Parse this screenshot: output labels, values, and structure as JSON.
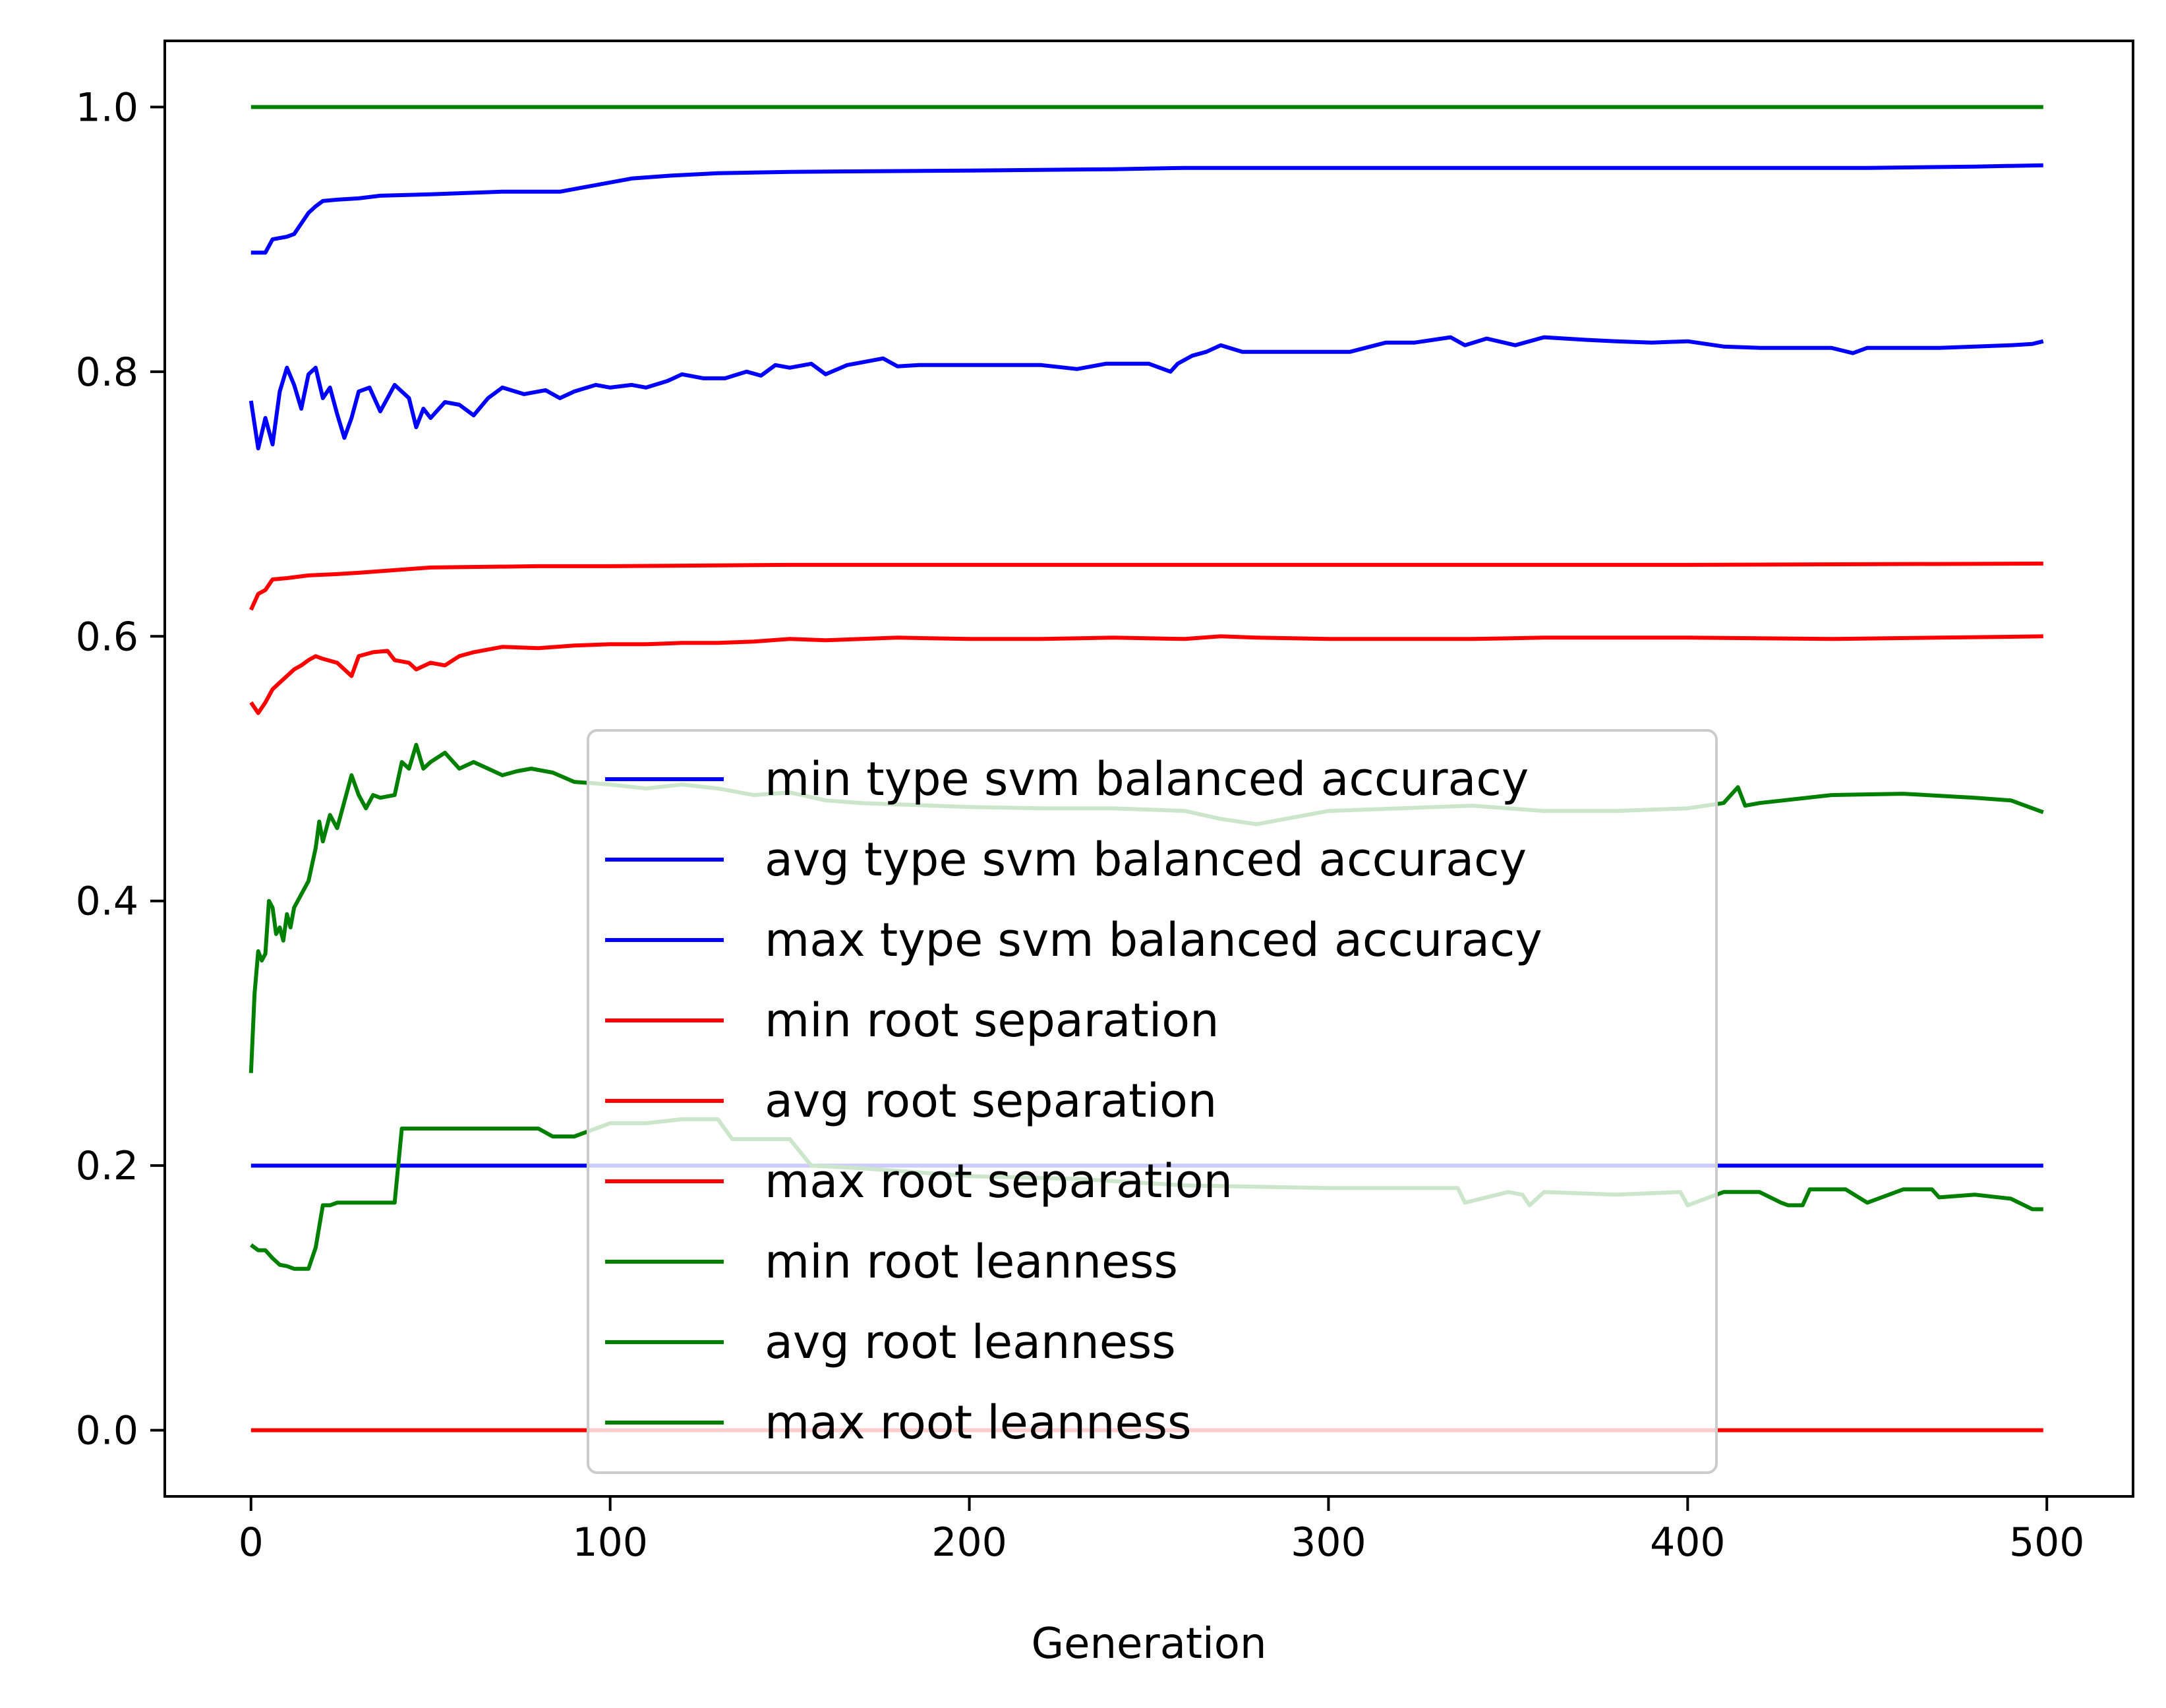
{
  "chart_data": {
    "type": "line",
    "title": "",
    "xlabel": "Generation",
    "ylabel": "",
    "xlim": [
      -24,
      524
    ],
    "ylim": [
      -0.05,
      1.05
    ],
    "xticks": [
      "0",
      "100",
      "200",
      "300",
      "400",
      "500"
    ],
    "yticks": [
      "0.0",
      "0.2",
      "0.4",
      "0.6",
      "0.8",
      "1.0"
    ],
    "grid": false,
    "legend_position": "center",
    "series": [
      {
        "name": "min type svm balanced accuracy",
        "color": "#0000ff",
        "x": [
          0,
          499
        ],
        "y": [
          0.2,
          0.2
        ]
      },
      {
        "name": "avg type svm balanced accuracy",
        "color": "#0000ff",
        "x": [
          0,
          2,
          4,
          6,
          8,
          10,
          12,
          14,
          16,
          18,
          20,
          22,
          24,
          26,
          28,
          30,
          33,
          36,
          40,
          44,
          46,
          48,
          50,
          54,
          58,
          62,
          66,
          70,
          76,
          82,
          86,
          90,
          96,
          100,
          106,
          110,
          116,
          120,
          126,
          132,
          138,
          142,
          146,
          150,
          156,
          160,
          166,
          170,
          176,
          180,
          186,
          200,
          220,
          230,
          238,
          244,
          250,
          256,
          258,
          262,
          266,
          270,
          276,
          290,
          300,
          306,
          316,
          324,
          334,
          338,
          344,
          352,
          360,
          366,
          372,
          380,
          390,
          400,
          410,
          420,
          430,
          440,
          446,
          450,
          460,
          470,
          480,
          490,
          496,
          499
        ],
        "y": [
          0.778,
          0.742,
          0.765,
          0.745,
          0.785,
          0.803,
          0.79,
          0.772,
          0.798,
          0.803,
          0.78,
          0.788,
          0.768,
          0.75,
          0.765,
          0.785,
          0.788,
          0.77,
          0.79,
          0.78,
          0.758,
          0.772,
          0.765,
          0.777,
          0.775,
          0.767,
          0.78,
          0.788,
          0.783,
          0.786,
          0.78,
          0.785,
          0.79,
          0.788,
          0.79,
          0.788,
          0.793,
          0.798,
          0.795,
          0.795,
          0.8,
          0.797,
          0.805,
          0.803,
          0.806,
          0.798,
          0.805,
          0.807,
          0.81,
          0.804,
          0.805,
          0.805,
          0.805,
          0.802,
          0.806,
          0.806,
          0.806,
          0.8,
          0.806,
          0.812,
          0.815,
          0.82,
          0.815,
          0.815,
          0.815,
          0.815,
          0.822,
          0.822,
          0.826,
          0.82,
          0.825,
          0.82,
          0.826,
          0.825,
          0.824,
          0.823,
          0.822,
          0.823,
          0.819,
          0.818,
          0.818,
          0.818,
          0.814,
          0.818,
          0.818,
          0.818,
          0.819,
          0.82,
          0.821,
          0.823
        ]
      },
      {
        "name": "max type svm balanced accuracy",
        "color": "#0000ff",
        "x": [
          0,
          4,
          6,
          10,
          12,
          14,
          16,
          18,
          20,
          24,
          30,
          36,
          50,
          60,
          70,
          86,
          94,
          100,
          106,
          116,
          130,
          150,
          200,
          240,
          260,
          300,
          350,
          400,
          450,
          480,
          499
        ],
        "y": [
          0.89,
          0.89,
          0.9,
          0.902,
          0.904,
          0.912,
          0.92,
          0.925,
          0.929,
          0.93,
          0.931,
          0.933,
          0.934,
          0.935,
          0.936,
          0.936,
          0.94,
          0.943,
          0.946,
          0.948,
          0.95,
          0.951,
          0.952,
          0.953,
          0.954,
          0.954,
          0.954,
          0.954,
          0.954,
          0.955,
          0.956
        ]
      },
      {
        "name": "min root separation",
        "color": "#ff0000",
        "x": [
          0,
          499
        ],
        "y": [
          0.0,
          0.0
        ]
      },
      {
        "name": "avg root separation",
        "color": "#ff0000",
        "x": [
          0,
          2,
          4,
          6,
          8,
          10,
          12,
          14,
          16,
          18,
          20,
          24,
          28,
          30,
          34,
          38,
          40,
          44,
          46,
          50,
          54,
          58,
          62,
          66,
          70,
          80,
          90,
          100,
          110,
          120,
          130,
          140,
          150,
          160,
          170,
          180,
          200,
          220,
          240,
          260,
          270,
          280,
          300,
          320,
          340,
          360,
          400,
          440,
          470,
          499
        ],
        "y": [
          0.55,
          0.542,
          0.55,
          0.56,
          0.565,
          0.57,
          0.575,
          0.578,
          0.582,
          0.585,
          0.583,
          0.58,
          0.57,
          0.585,
          0.588,
          0.589,
          0.582,
          0.58,
          0.575,
          0.58,
          0.578,
          0.585,
          0.588,
          0.59,
          0.592,
          0.591,
          0.593,
          0.594,
          0.594,
          0.595,
          0.595,
          0.596,
          0.598,
          0.597,
          0.598,
          0.599,
          0.598,
          0.598,
          0.599,
          0.598,
          0.6,
          0.599,
          0.598,
          0.598,
          0.598,
          0.599,
          0.599,
          0.598,
          0.599,
          0.6
        ]
      },
      {
        "name": "max root separation",
        "color": "#ff0000",
        "x": [
          0,
          2,
          4,
          6,
          10,
          16,
          24,
          30,
          40,
          50,
          80,
          100,
          150,
          200,
          300,
          400,
          499
        ],
        "y": [
          0.62,
          0.632,
          0.635,
          0.643,
          0.644,
          0.646,
          0.647,
          0.648,
          0.65,
          0.652,
          0.653,
          0.653,
          0.654,
          0.654,
          0.654,
          0.654,
          0.655
        ]
      },
      {
        "name": "min root leanness",
        "color": "#008000",
        "x": [
          0,
          2,
          4,
          6,
          8,
          10,
          12,
          14,
          16,
          18,
          20,
          22,
          24,
          26,
          30,
          34,
          40,
          42,
          44,
          50,
          60,
          70,
          80,
          84,
          86,
          90,
          100,
          106,
          110,
          120,
          130,
          134,
          140,
          150,
          156,
          170,
          200,
          230,
          260,
          300,
          336,
          338,
          350,
          354,
          356,
          360,
          380,
          398,
          400,
          410,
          420,
          426,
          428,
          432,
          434,
          440,
          444,
          450,
          460,
          466,
          468,
          470,
          480,
          490,
          496,
          499
        ],
        "y": [
          0.14,
          0.136,
          0.136,
          0.13,
          0.125,
          0.124,
          0.122,
          0.122,
          0.122,
          0.138,
          0.17,
          0.17,
          0.172,
          0.172,
          0.172,
          0.172,
          0.172,
          0.228,
          0.228,
          0.228,
          0.228,
          0.228,
          0.228,
          0.222,
          0.222,
          0.222,
          0.232,
          0.232,
          0.232,
          0.235,
          0.235,
          0.22,
          0.22,
          0.22,
          0.2,
          0.198,
          0.192,
          0.19,
          0.185,
          0.183,
          0.183,
          0.172,
          0.18,
          0.178,
          0.17,
          0.18,
          0.178,
          0.18,
          0.17,
          0.18,
          0.18,
          0.172,
          0.17,
          0.17,
          0.182,
          0.182,
          0.182,
          0.172,
          0.182,
          0.182,
          0.182,
          0.176,
          0.178,
          0.175,
          0.167,
          0.167
        ]
      },
      {
        "name": "avg root leanness",
        "color": "#008000",
        "x": [
          0,
          1,
          2,
          3,
          4,
          5,
          6,
          7,
          8,
          9,
          10,
          11,
          12,
          14,
          16,
          18,
          19,
          20,
          22,
          24,
          26,
          28,
          30,
          32,
          34,
          36,
          40,
          42,
          44,
          46,
          48,
          50,
          54,
          58,
          62,
          66,
          70,
          74,
          78,
          84,
          90,
          100,
          110,
          120,
          130,
          140,
          150,
          160,
          170,
          180,
          200,
          220,
          240,
          260,
          270,
          280,
          300,
          320,
          340,
          360,
          380,
          400,
          410,
          414,
          416,
          420,
          440,
          460,
          480,
          490,
          499
        ],
        "y": [
          0.27,
          0.33,
          0.362,
          0.355,
          0.36,
          0.4,
          0.395,
          0.375,
          0.38,
          0.37,
          0.39,
          0.38,
          0.395,
          0.405,
          0.415,
          0.44,
          0.46,
          0.445,
          0.465,
          0.455,
          0.475,
          0.495,
          0.48,
          0.47,
          0.48,
          0.478,
          0.48,
          0.505,
          0.5,
          0.518,
          0.5,
          0.505,
          0.512,
          0.5,
          0.505,
          0.5,
          0.495,
          0.498,
          0.5,
          0.497,
          0.49,
          0.488,
          0.485,
          0.488,
          0.485,
          0.48,
          0.482,
          0.476,
          0.474,
          0.473,
          0.471,
          0.47,
          0.47,
          0.468,
          0.462,
          0.458,
          0.468,
          0.47,
          0.472,
          0.468,
          0.468,
          0.47,
          0.474,
          0.486,
          0.472,
          0.474,
          0.48,
          0.481,
          0.478,
          0.476,
          0.467
        ]
      },
      {
        "name": "max root leanness",
        "color": "#008000",
        "x": [
          0,
          499
        ],
        "y": [
          1.0,
          1.0
        ]
      }
    ]
  }
}
